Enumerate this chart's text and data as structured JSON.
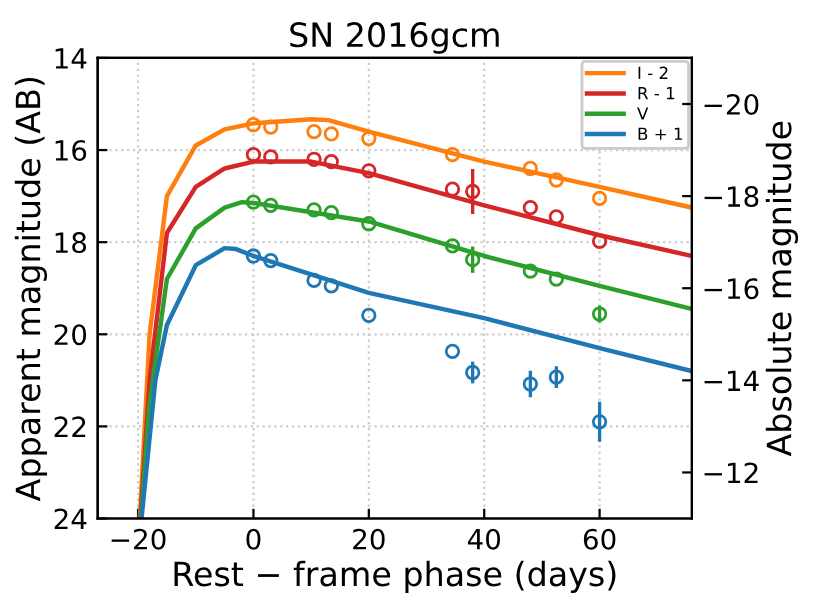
{
  "chart_data": {
    "type": "line",
    "title": "SN 2016gcm",
    "xlabel": "Rest − frame phase (days)",
    "ylabel": "Apparent magnitude (AB)",
    "y2label": "Absolute magnitude",
    "xlim": [
      -27,
      76
    ],
    "xticks": [
      -20,
      0,
      20,
      40,
      60
    ],
    "ylim": [
      24,
      14
    ],
    "yticks": [
      14,
      16,
      18,
      20,
      22,
      24
    ],
    "y2lim": [
      -11,
      -21
    ],
    "y2ticks": [
      -20,
      -18,
      -16,
      -14,
      -12
    ],
    "grid": true,
    "legend": "top right",
    "series": [
      {
        "name": "I - 2",
        "color": "#ff7f0e",
        "x": [
          -19.7,
          -18,
          -15,
          -10,
          -5,
          0,
          10,
          13,
          20,
          40,
          60,
          76
        ],
        "values": [
          24,
          20,
          17,
          15.9,
          15.55,
          15.42,
          15.33,
          15.35,
          15.6,
          16.25,
          16.8,
          17.25
        ]
      },
      {
        "name": "R - 1",
        "color": "#d62728",
        "x": [
          -19.6,
          -18,
          -15,
          -10,
          -5,
          0,
          10,
          20,
          40,
          60,
          76
        ],
        "values": [
          24,
          21,
          17.8,
          16.8,
          16.4,
          16.25,
          16.25,
          16.5,
          17.2,
          17.85,
          18.3
        ]
      },
      {
        "name": "V",
        "color": "#2ca02c",
        "x": [
          -19.5,
          -18,
          -15,
          -10,
          -5,
          -2,
          0,
          20,
          40,
          60,
          76
        ],
        "values": [
          24,
          21.5,
          18.8,
          17.7,
          17.25,
          17.13,
          17.15,
          17.55,
          18.3,
          18.95,
          19.45
        ]
      },
      {
        "name": "B + 1",
        "color": "#1f77b4",
        "x": [
          -19.4,
          -17,
          -15,
          -10,
          -5,
          -3,
          0,
          10,
          20,
          40,
          60,
          76
        ],
        "values": [
          24,
          21,
          19.8,
          18.5,
          18.13,
          18.15,
          18.3,
          18.7,
          19.1,
          19.65,
          20.3,
          20.8
        ]
      },
      {
        "type": "scatter",
        "marker": "circle",
        "color": "#ff7f0e",
        "x": [
          0,
          3,
          10.5,
          13.5,
          20,
          34.5,
          48,
          52.5,
          60
        ],
        "values": [
          15.45,
          15.5,
          15.6,
          15.65,
          15.75,
          16.1,
          16.4,
          16.65,
          17.05
        ]
      },
      {
        "type": "scatter",
        "marker": "circle",
        "color": "#d62728",
        "x": [
          0,
          3,
          10.5,
          13.5,
          20,
          34.5,
          38,
          48,
          52.5,
          60
        ],
        "values": [
          16.1,
          16.15,
          16.2,
          16.25,
          16.45,
          16.85,
          16.9,
          17.25,
          17.45,
          17.98
        ],
        "errors": [
          null,
          null,
          null,
          null,
          null,
          null,
          0.45,
          null,
          null,
          null
        ]
      },
      {
        "type": "scatter",
        "marker": "circle",
        "color": "#2ca02c",
        "x": [
          0,
          3,
          10.5,
          13.5,
          20,
          34.5,
          38,
          48,
          52.5,
          60
        ],
        "values": [
          17.13,
          17.2,
          17.3,
          17.36,
          17.6,
          18.08,
          18.38,
          18.63,
          18.8,
          19.56
        ],
        "errors": [
          null,
          null,
          null,
          null,
          null,
          null,
          0.25,
          null,
          null,
          0.15
        ]
      },
      {
        "type": "scatter",
        "marker": "circle",
        "color": "#1f77b4",
        "x": [
          0,
          3,
          10.5,
          13.5,
          20,
          34.5,
          38,
          48,
          52.5,
          60
        ],
        "values": [
          18.3,
          18.4,
          18.83,
          18.95,
          19.59,
          20.37,
          20.83,
          21.08,
          20.93,
          21.9
        ],
        "errors": [
          null,
          null,
          null,
          null,
          null,
          null,
          0.2,
          0.25,
          0.2,
          0.4
        ]
      }
    ]
  }
}
